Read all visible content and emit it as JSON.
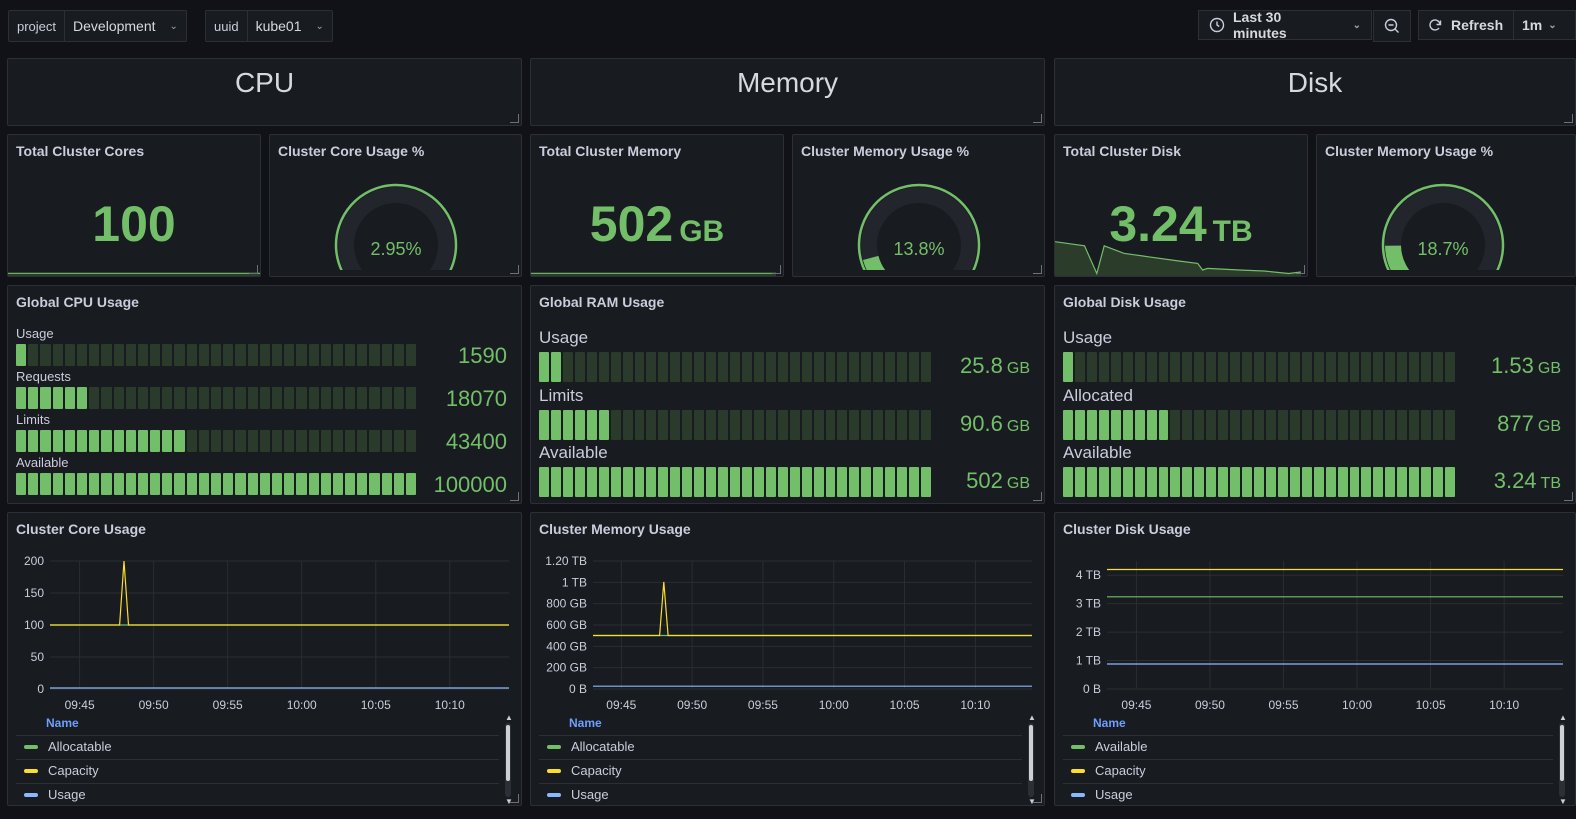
{
  "topbar": {
    "vars": [
      {
        "label": "project",
        "value": "Development"
      },
      {
        "label": "uuid",
        "value": "kube01"
      }
    ],
    "time_range": "Last 30 minutes",
    "refresh_label": "Refresh",
    "refresh_interval": "1m"
  },
  "rows": [
    {
      "title": "CPU"
    },
    {
      "title": "Memory"
    },
    {
      "title": "Disk"
    }
  ],
  "stats": {
    "cores": {
      "title": "Total Cluster Cores",
      "value": "100",
      "unit": ""
    },
    "memory": {
      "title": "Total Cluster Memory",
      "value": "502",
      "unit": "GB"
    },
    "disk": {
      "title": "Total Cluster Disk",
      "value": "3.24",
      "unit": "TB"
    }
  },
  "gauges": {
    "cpu": {
      "title": "Cluster Core Usage %",
      "value": "2.95%",
      "percent": 2.95
    },
    "mem": {
      "title": "Cluster Memory Usage %",
      "value": "13.8%",
      "percent": 13.8
    },
    "disk": {
      "title": "Cluster Memory Usage %",
      "value": "18.7%",
      "percent": 18.7
    }
  },
  "bargauges": {
    "cpu": {
      "title": "Global CPU Usage",
      "rows": [
        {
          "label": "Usage",
          "value": "1590",
          "unit": "",
          "fraction": 0.0159
        },
        {
          "label": "Requests",
          "value": "18070",
          "unit": "",
          "fraction": 0.1807
        },
        {
          "label": "Limits",
          "value": "43400",
          "unit": "",
          "fraction": 0.434
        },
        {
          "label": "Available",
          "value": "100000",
          "unit": "",
          "fraction": 1.0
        }
      ]
    },
    "ram": {
      "title": "Global RAM Usage",
      "rows": [
        {
          "label": "Usage",
          "value": "25.8",
          "unit": "GB",
          "fraction": 0.0514
        },
        {
          "label": "Limits",
          "value": "90.6",
          "unit": "GB",
          "fraction": 0.1805
        },
        {
          "label": "Available",
          "value": "502",
          "unit": "GB",
          "fraction": 1.0
        }
      ]
    },
    "disk": {
      "title": "Global Disk Usage",
      "rows": [
        {
          "label": "Usage",
          "value": "1.53",
          "unit": "GB",
          "fraction": 0.0005
        },
        {
          "label": "Allocated",
          "value": "877",
          "unit": "GB",
          "fraction": 0.2707
        },
        {
          "label": "Available",
          "value": "3.24",
          "unit": "TB",
          "fraction": 1.0
        }
      ]
    }
  },
  "colors": {
    "green": "#73bf69",
    "yellow": "#fade2a",
    "blue": "#8ab8ff",
    "panel_bg": "#181b1f",
    "page_bg": "#111217"
  },
  "legend_header": "Name",
  "chart_data": [
    {
      "type": "line",
      "title": "Cluster Core Usage",
      "x": [
        "09:45",
        "09:50",
        "09:55",
        "10:00",
        "10:05",
        "10:10"
      ],
      "yticks": [
        "200",
        "150",
        "100",
        "50",
        "0"
      ],
      "ylim": [
        0,
        200
      ],
      "xlim_minutes": [
        -47,
        -16
      ],
      "series": [
        {
          "name": "Allocatable",
          "color": "#73bf69",
          "points": [
            [
              -47,
              100
            ],
            [
              -16,
              100
            ]
          ]
        },
        {
          "name": "Capacity",
          "color": "#fade2a",
          "points": [
            [
              -47,
              100
            ],
            [
              -42.3,
              100
            ],
            [
              -42,
              200
            ],
            [
              -41.7,
              100
            ],
            [
              -16,
              100
            ]
          ]
        },
        {
          "name": "Usage",
          "color": "#8ab8ff",
          "points": [
            [
              -47,
              1.6
            ],
            [
              -16,
              1.6
            ]
          ]
        }
      ],
      "legend": [
        "Allocatable",
        "Capacity",
        "Usage"
      ]
    },
    {
      "type": "line",
      "title": "Cluster Memory Usage",
      "x": [
        "09:45",
        "09:50",
        "09:55",
        "10:00",
        "10:05",
        "10:10"
      ],
      "yticks": [
        "1.20 TB",
        "1 TB",
        "800 GB",
        "600 GB",
        "400 GB",
        "200 GB",
        "0 B"
      ],
      "ylim": [
        0,
        1200
      ],
      "xlim_minutes": [
        -47,
        -16
      ],
      "series": [
        {
          "name": "Allocatable",
          "color": "#73bf69",
          "points": [
            [
              -47,
              502
            ],
            [
              -16,
              502
            ]
          ]
        },
        {
          "name": "Capacity",
          "color": "#fade2a",
          "points": [
            [
              -47,
              502
            ],
            [
              -42.3,
              502
            ],
            [
              -42,
              1004
            ],
            [
              -41.7,
              502
            ],
            [
              -16,
              502
            ]
          ]
        },
        {
          "name": "Usage",
          "color": "#8ab8ff",
          "points": [
            [
              -47,
              25.8
            ],
            [
              -16,
              25.8
            ]
          ]
        }
      ],
      "legend": [
        "Allocatable",
        "Capacity",
        "Usage"
      ]
    },
    {
      "type": "line",
      "title": "Cluster Disk Usage",
      "x": [
        "09:45",
        "09:50",
        "09:55",
        "10:00",
        "10:05",
        "10:10"
      ],
      "yticks": [
        "4 TB",
        "3 TB",
        "2 TB",
        "1 TB",
        "0 B"
      ],
      "ylim": [
        0,
        4.5
      ],
      "xlim_minutes": [
        -47,
        -16
      ],
      "series": [
        {
          "name": "Available",
          "color": "#73bf69",
          "points": [
            [
              -47,
              3.24
            ],
            [
              -16,
              3.24
            ]
          ]
        },
        {
          "name": "Capacity",
          "color": "#fade2a",
          "points": [
            [
              -47,
              4.2
            ],
            [
              -16,
              4.2
            ]
          ]
        },
        {
          "name": "Usage",
          "color": "#8ab8ff",
          "points": [
            [
              -47,
              0.88
            ],
            [
              -16,
              0.88
            ]
          ]
        }
      ],
      "legend": [
        "Available",
        "Capacity",
        "Usage"
      ]
    }
  ],
  "sparklines": {
    "cores": [
      [
        0,
        0.1
      ],
      [
        1,
        0.1
      ]
    ],
    "memory": [
      [
        0,
        0.1
      ],
      [
        1,
        0.1
      ]
    ],
    "disk": [
      [
        0,
        0.68
      ],
      [
        0.12,
        0.6
      ],
      [
        0.17,
        0.05
      ],
      [
        0.2,
        0.6
      ],
      [
        0.28,
        0.45
      ],
      [
        0.38,
        0.38
      ],
      [
        0.5,
        0.3
      ],
      [
        0.58,
        0.25
      ],
      [
        0.6,
        0.12
      ],
      [
        0.62,
        0.15
      ],
      [
        0.75,
        0.12
      ],
      [
        0.85,
        0.1
      ],
      [
        0.95,
        0.05
      ],
      [
        1,
        0.08
      ]
    ]
  }
}
